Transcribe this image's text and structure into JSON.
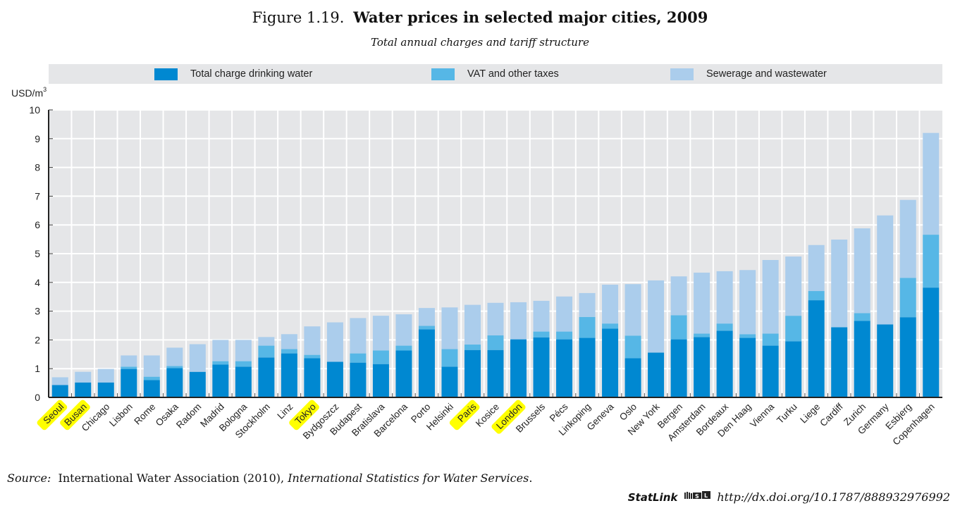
{
  "header": {
    "figure_number": "Figure 1.19.",
    "title": "Water prices in selected major cities, 2009",
    "subtitle": "Total annual charges and tariff structure"
  },
  "colors": {
    "drinking": "#0088d1",
    "vat": "#56b7e6",
    "sewerage": "#abcdec",
    "plot_bg": "#e5e6e8",
    "grid": "#ffffff",
    "highlight": "#ffff00"
  },
  "chart_data": {
    "type": "bar",
    "stacked": true,
    "title": "Water prices in selected major cities, 2009",
    "subtitle": "Total annual charges and tariff structure",
    "xlabel": "",
    "ylabel": "USD/m3",
    "ylim": [
      0,
      10
    ],
    "yticks": [
      "0",
      "1",
      "2",
      "3",
      "4",
      "5",
      "6",
      "7",
      "8",
      "9",
      "10"
    ],
    "grid": true,
    "legend_position": "top",
    "categories": [
      "Seoul",
      "Busan",
      "Chicago",
      "Lisbon",
      "Rome",
      "Osaka",
      "Radom",
      "Madrid",
      "Bologna",
      "Stockholm",
      "Linz",
      "Tokyo",
      "Bydgoszcz",
      "Budapest",
      "Bratislava",
      "Barcelona",
      "Porto",
      "Helsinki",
      "Paris",
      "Kosice",
      "London",
      "Brussels",
      "Pécs",
      "Linkoping",
      "Geneva",
      "Oslo",
      "New York",
      "Bergen",
      "Amsterdam",
      "Bordeaux",
      "Den Haag",
      "Vienna",
      "Turku",
      "Liege",
      "Cardiff",
      "Zurich",
      "Germany",
      "Esbjerg",
      "Copenhagen"
    ],
    "highlighted_categories": [
      "Seoul",
      "Busan",
      "Tokyo",
      "Paris",
      "London"
    ],
    "series": [
      {
        "name": "Total charge drinking water",
        "color_key": "drinking",
        "values": [
          0.43,
          0.52,
          0.52,
          0.99,
          0.6,
          1.02,
          0.89,
          1.14,
          1.07,
          1.39,
          1.53,
          1.36,
          1.24,
          1.21,
          1.16,
          1.63,
          2.37,
          1.07,
          1.65,
          1.65,
          2.02,
          2.09,
          2.02,
          2.07,
          2.39,
          1.36,
          1.56,
          2.02,
          2.1,
          2.32,
          2.07,
          1.8,
          1.95,
          3.38,
          2.44,
          2.66,
          2.54,
          2.79,
          3.82
        ]
      },
      {
        "name": "VAT and other taxes",
        "color_key": "vat",
        "values": [
          0.0,
          0.0,
          0.0,
          0.08,
          0.12,
          0.07,
          0.0,
          0.12,
          0.19,
          0.41,
          0.15,
          0.12,
          0.0,
          0.32,
          0.47,
          0.17,
          0.12,
          0.61,
          0.19,
          0.51,
          0.0,
          0.2,
          0.27,
          0.73,
          0.18,
          0.79,
          0.0,
          0.84,
          0.12,
          0.25,
          0.13,
          0.42,
          0.89,
          0.32,
          0.0,
          0.27,
          0.0,
          1.37,
          1.84
        ]
      },
      {
        "name": "Sewerage and wastewater",
        "color_key": "sewerage",
        "values": [
          0.27,
          0.37,
          0.47,
          0.39,
          0.74,
          0.64,
          0.96,
          0.74,
          0.74,
          0.3,
          0.52,
          0.99,
          1.37,
          1.23,
          1.21,
          1.09,
          0.62,
          1.45,
          1.38,
          1.13,
          1.29,
          1.07,
          1.22,
          0.83,
          1.35,
          1.79,
          2.51,
          1.35,
          2.12,
          1.82,
          2.23,
          2.56,
          2.06,
          1.6,
          3.05,
          2.95,
          3.79,
          2.71,
          3.54
        ]
      }
    ]
  },
  "legend": [
    {
      "label": "Total charge drinking water",
      "color_key": "drinking"
    },
    {
      "label": "VAT and other taxes",
      "color_key": "vat"
    },
    {
      "label": "Sewerage and wastewater",
      "color_key": "sewerage"
    }
  ],
  "axis": {
    "y_unit": "USD/m",
    "y_unit_sup": "3"
  },
  "footer": {
    "source_label": "Source:",
    "source_text": "International Water Association (2010), ",
    "source_italic": "International Statistics for Water Services",
    "source_end": ".",
    "statlink_label": "StatLink",
    "statlink_icon": "statlink-logo-icon",
    "statlink_url": "http://dx.doi.org/10.1787/888932976992"
  }
}
